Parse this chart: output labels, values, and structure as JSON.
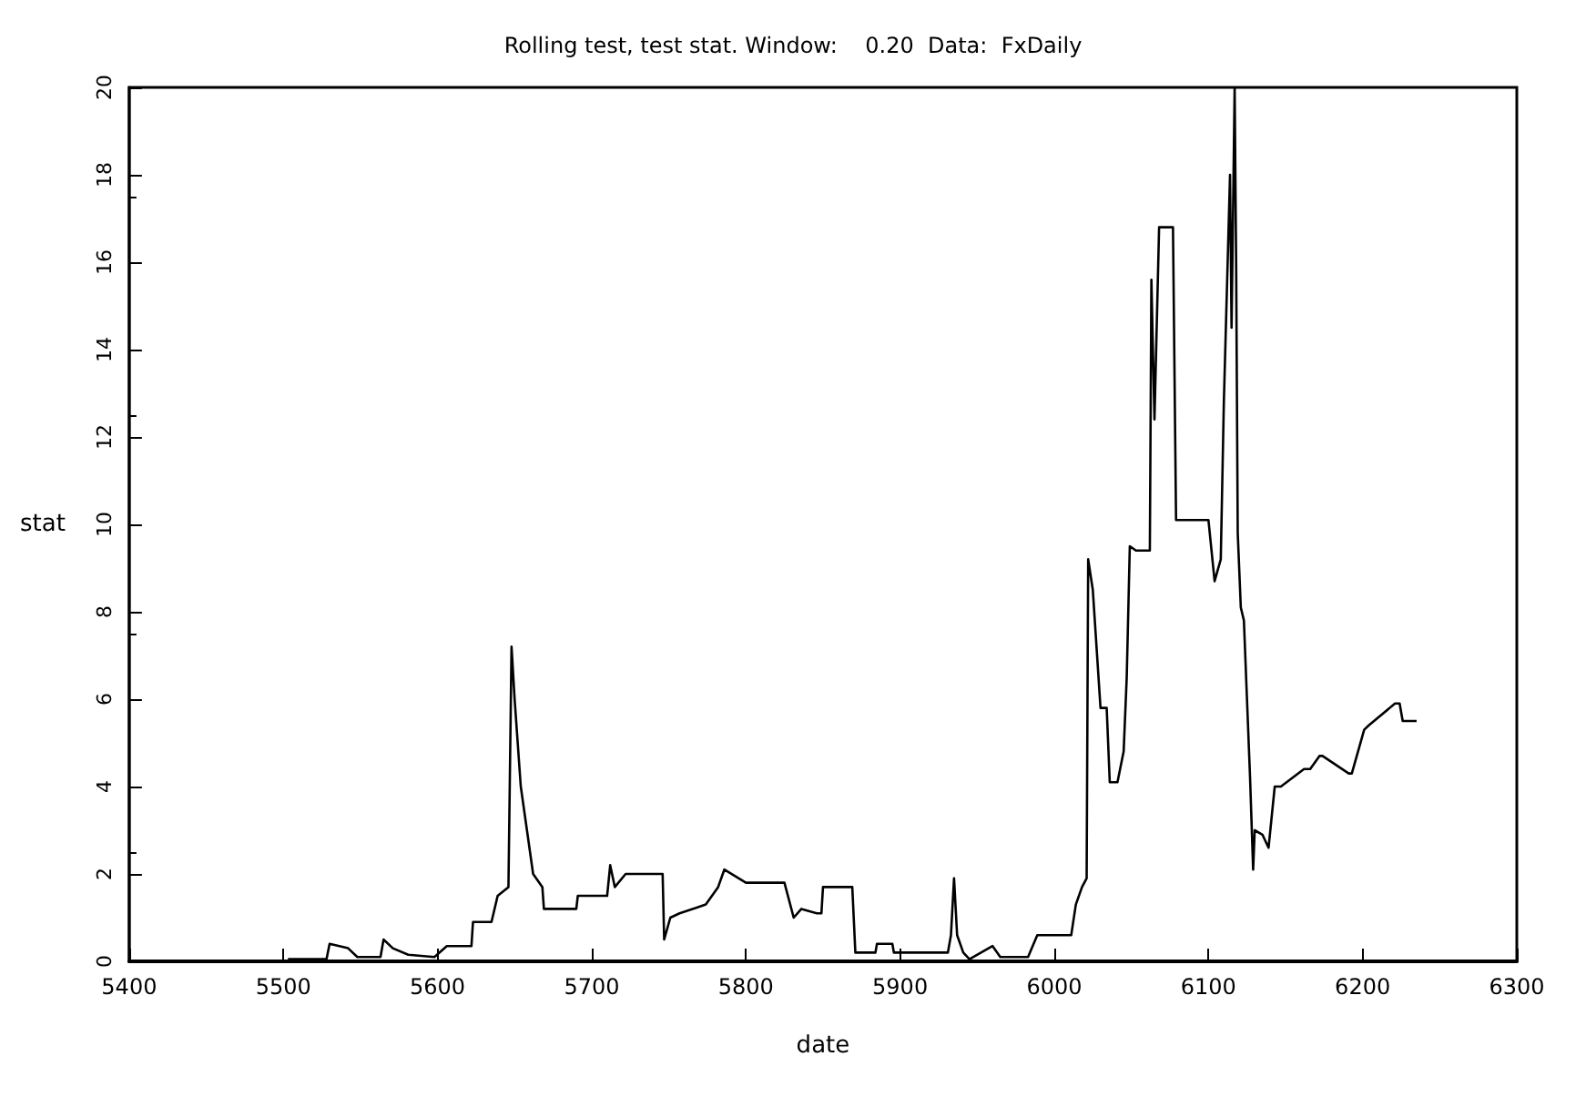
{
  "chart_data": {
    "type": "line",
    "title": "Rolling test, test stat. Window:    0.20  Data:  FxDaily",
    "xlabel": "date",
    "ylabel": "stat",
    "xlim": [
      5400,
      6300
    ],
    "xticks": [
      5400,
      5500,
      5600,
      5700,
      5800,
      5900,
      6000,
      6100,
      6200,
      6300
    ],
    "ylim": [
      0,
      20
    ],
    "yticks": [
      0,
      2,
      4,
      6,
      8,
      10,
      12,
      14,
      16,
      18,
      20
    ],
    "grid": false,
    "marker": "none",
    "line_style": "solid",
    "series": [
      {
        "color": "#000000",
        "x": [
          5503,
          5528,
          5530,
          5542,
          5548,
          5563,
          5565,
          5571,
          5581,
          5598,
          5606,
          5622,
          5623,
          5635,
          5639,
          5646,
          5648,
          5650,
          5654,
          5658,
          5662,
          5668,
          5669,
          5690,
          5691,
          5710,
          5712,
          5715,
          5722,
          5746,
          5747,
          5751,
          5757,
          5774,
          5782,
          5786,
          5800,
          5825,
          5831,
          5836,
          5846,
          5849,
          5850,
          5869,
          5871,
          5884,
          5885,
          5895,
          5896,
          5931,
          5933,
          5935,
          5937,
          5941,
          5945,
          5960,
          5965,
          5983,
          5989,
          6011,
          6014,
          6018,
          6021,
          6022,
          6025,
          6030,
          6034,
          6036,
          6041,
          6045,
          6047,
          6049,
          6053,
          6062,
          6063,
          6065,
          6068,
          6077,
          6079,
          6100,
          6104,
          6108,
          6110,
          6112,
          6114,
          6115,
          6117,
          6118,
          6119,
          6121,
          6123,
          6127,
          6129,
          6130,
          6135,
          6139,
          6143,
          6147,
          6162,
          6166,
          6172,
          6174,
          6191,
          6193,
          6201,
          6204,
          6221,
          6224,
          6226,
          6230,
          6231,
          6235
        ],
        "values": [
          0.05,
          0.05,
          0.4,
          0.3,
          0.1,
          0.1,
          0.5,
          0.3,
          0.15,
          0.1,
          0.35,
          0.35,
          0.9,
          0.9,
          1.5,
          1.7,
          7.2,
          6.0,
          4.0,
          3.0,
          2.0,
          1.7,
          1.2,
          1.2,
          1.5,
          1.5,
          2.2,
          1.7,
          2.0,
          2.0,
          0.5,
          1.0,
          1.1,
          1.3,
          1.7,
          2.1,
          1.8,
          1.8,
          1.0,
          1.2,
          1.1,
          1.1,
          1.7,
          1.7,
          0.2,
          0.2,
          0.4,
          0.4,
          0.2,
          0.2,
          0.6,
          1.9,
          0.6,
          0.2,
          0.05,
          0.35,
          0.1,
          0.1,
          0.6,
          0.6,
          1.3,
          1.7,
          1.9,
          9.2,
          8.5,
          5.8,
          5.8,
          4.1,
          4.1,
          4.8,
          6.5,
          9.5,
          9.4,
          9.4,
          15.6,
          12.4,
          16.8,
          16.8,
          10.1,
          10.1,
          8.7,
          9.2,
          12.8,
          15.4,
          18.0,
          14.5,
          20.0,
          15.8,
          9.8,
          8.1,
          7.8,
          4.2,
          2.1,
          3.0,
          2.9,
          2.6,
          4.0,
          4.0,
          4.4,
          4.4,
          4.7,
          4.7,
          4.3,
          4.3,
          5.3,
          5.4,
          5.9,
          5.9,
          5.5,
          5.5,
          5.5,
          5.5
        ]
      }
    ]
  }
}
